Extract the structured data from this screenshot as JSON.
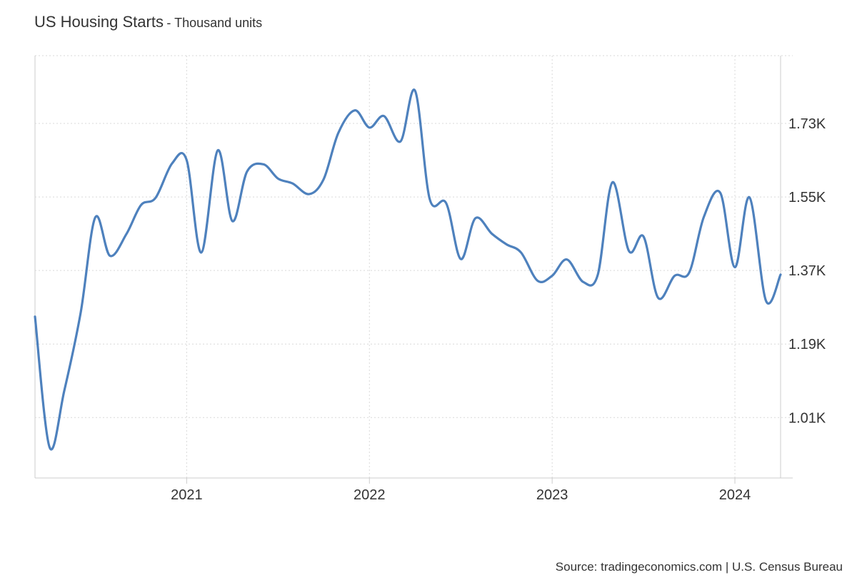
{
  "header": {
    "title": "US Housing Starts",
    "subtitle": "- Thousand units"
  },
  "source": "Source: tradingeconomics.com | U.S. Census Bureau",
  "colors": {
    "line": "#4e81bd",
    "grid": "#d9d9d9",
    "axis": "#cccccc",
    "text": "#333333"
  },
  "chart_data": {
    "type": "line",
    "title": "US Housing Starts",
    "subtitle": "Thousand units",
    "ylabel": "Thousand units",
    "xlabel": "",
    "x_tick_labels": [
      "2021",
      "2022",
      "2023",
      "2024"
    ],
    "x_ticks": [
      2021.0,
      2022.0,
      2023.0,
      2024.0
    ],
    "y_tick_labels": [
      "1.01K",
      "1.19K",
      "1.37K",
      "1.55K",
      "1.73K"
    ],
    "y_ticks": [
      1010,
      1190,
      1370,
      1550,
      1730
    ],
    "xlim": [
      2020.17,
      2024.25
    ],
    "ylim": [
      862,
      1896
    ],
    "grid": true,
    "series": [
      {
        "name": "US Housing Starts",
        "x": [
          2020.17,
          2020.25,
          2020.33,
          2020.42,
          2020.5,
          2020.58,
          2020.67,
          2020.75,
          2020.83,
          2020.92,
          2021.0,
          2021.08,
          2021.17,
          2021.25,
          2021.33,
          2021.42,
          2021.5,
          2021.58,
          2021.67,
          2021.75,
          2021.83,
          2021.92,
          2022.0,
          2022.08,
          2022.17,
          2022.25,
          2022.33,
          2022.42,
          2022.5,
          2022.58,
          2022.67,
          2022.75,
          2022.83,
          2022.92,
          2023.0,
          2023.08,
          2023.17,
          2023.25,
          2023.33,
          2023.42,
          2023.5,
          2023.58,
          2023.67,
          2023.75,
          2023.83,
          2023.92,
          2024.0,
          2024.08,
          2024.17,
          2024.25
        ],
        "values": [
          1257,
          937,
          1075,
          1267,
          1500,
          1406,
          1459,
          1530,
          1548,
          1632,
          1640,
          1414,
          1664,
          1491,
          1612,
          1630,
          1595,
          1583,
          1557,
          1594,
          1707,
          1762,
          1720,
          1748,
          1686,
          1810,
          1545,
          1535,
          1398,
          1498,
          1460,
          1434,
          1414,
          1345,
          1357,
          1397,
          1342,
          1360,
          1586,
          1418,
          1453,
          1303,
          1357,
          1365,
          1501,
          1560,
          1378,
          1549,
          1296,
          1360
        ]
      }
    ]
  }
}
